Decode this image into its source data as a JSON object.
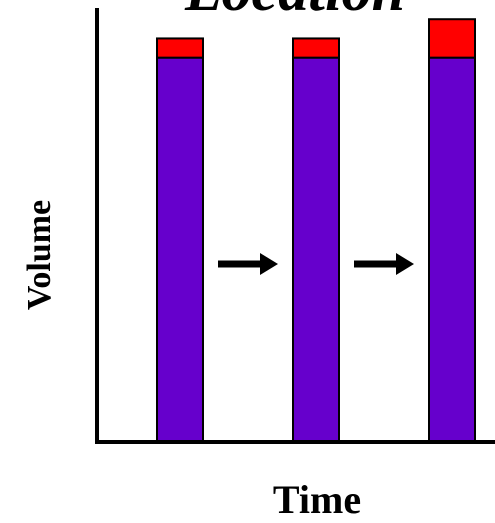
{
  "chart_data": {
    "type": "bar",
    "stacked": true,
    "title": "Location",
    "xlabel": "Time",
    "ylabel": "Volume",
    "categories": [
      "",
      "",
      ""
    ],
    "series": [
      {
        "values": [
          100,
          100,
          100
        ]
      },
      {
        "values": [
          5,
          5,
          10
        ]
      }
    ],
    "colors": [
      "#6600cc",
      "#ff0000"
    ],
    "ylim": [
      0,
      115
    ],
    "grid": false,
    "annotations": [
      "arrow-right-icon",
      "arrow-right-icon"
    ]
  }
}
